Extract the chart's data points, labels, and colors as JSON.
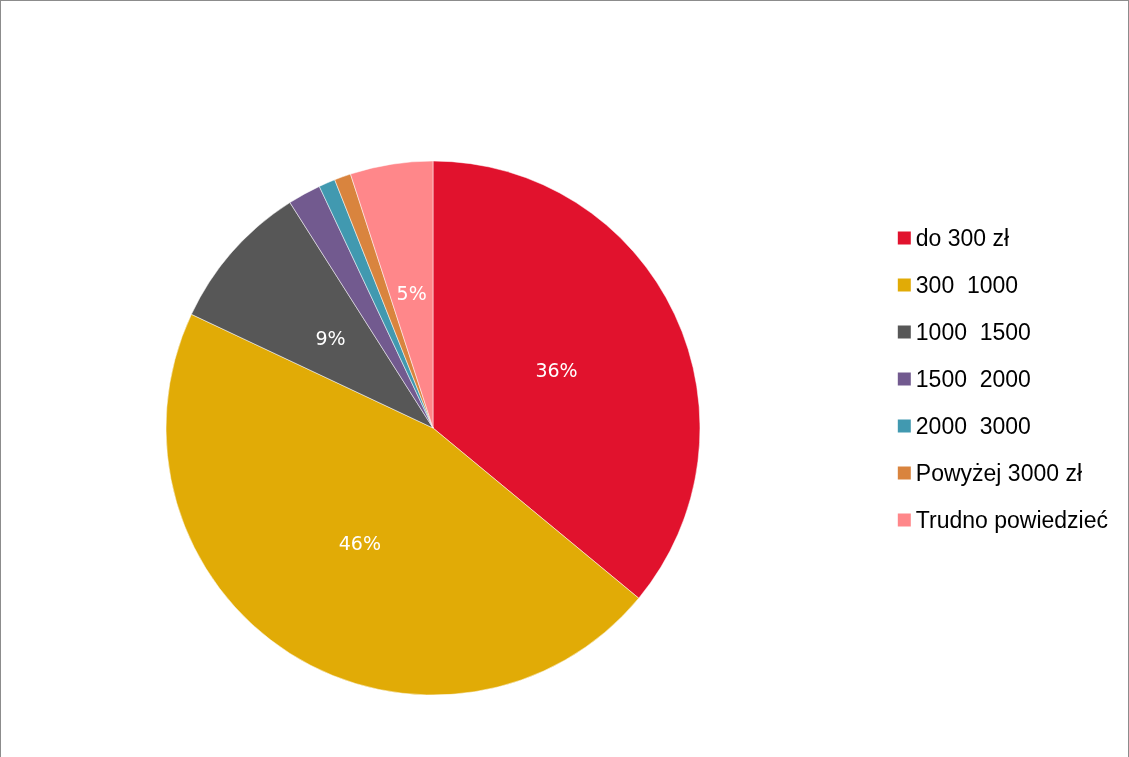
{
  "chart_data": {
    "type": "pie",
    "categories": [
      "do 300 zł",
      "300  1000",
      "1000  1500",
      "1500  2000",
      "2000  3000",
      "Powyżej 3000 zł",
      "Trudno powiedzieć"
    ],
    "values": [
      36,
      46,
      9,
      2,
      1,
      1,
      5
    ],
    "colors": [
      "#e1122d",
      "#e1ab06",
      "#575757",
      "#725a8f",
      "#4199b0",
      "#d9843e",
      "#ff878a"
    ],
    "value_labels": [
      "36%",
      "46%",
      "9%",
      null,
      null,
      null,
      "5%"
    ],
    "legend": "right"
  }
}
